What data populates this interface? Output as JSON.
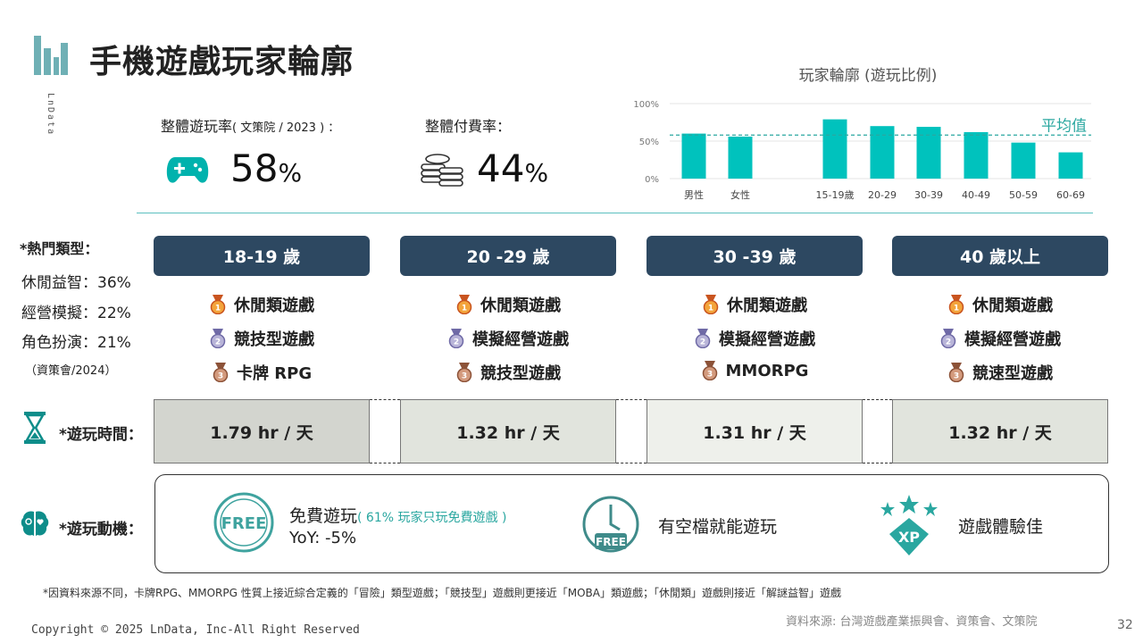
{
  "header": {
    "title": "手機遊戲玩家輪廓",
    "brand_vertical": "LnData"
  },
  "stats": {
    "play_rate_label": "整體遊玩率",
    "play_rate_source": "( 文策院 / 2023 ) ：",
    "play_rate_value": "58",
    "pay_rate_label": "整體付費率：",
    "pay_rate_value": "44",
    "pct": "%"
  },
  "chart_data": {
    "type": "bar",
    "title": "玩家輪廓 (遊玩比例)",
    "categories": [
      "男性",
      "女性",
      "15-19歲",
      "20-29",
      "30-39",
      "40-49",
      "50-59",
      "60-69"
    ],
    "values": [
      60,
      56,
      79,
      70,
      69,
      62,
      48,
      35
    ],
    "average": 58,
    "average_label": "平均值",
    "ylim": [
      0,
      100
    ],
    "yticks": [
      "100%",
      "50%",
      "0%"
    ],
    "color": "#00c2bd"
  },
  "categories": {
    "heading": "*熱門類型：",
    "items": [
      "休閒益智：36%",
      "經營模擬：22%",
      "角色扮演：21%"
    ],
    "source": "（資策會/2024）"
  },
  "age_groups": [
    {
      "label": "18-19 歲",
      "ranks": [
        "休閒類遊戲",
        "競技型遊戲",
        "卡牌 RPG"
      ],
      "time": "1.79 hr / 天"
    },
    {
      "label": "20 -29 歲",
      "ranks": [
        "休閒類遊戲",
        "模擬經營遊戲",
        "競技型遊戲"
      ],
      "time": "1.32 hr / 天"
    },
    {
      "label": "30 -39 歲",
      "ranks": [
        "休閒類遊戲",
        "模擬經營遊戲",
        "MMORPG"
      ],
      "time": "1.31 hr / 天"
    },
    {
      "label": "40 歲以上",
      "ranks": [
        "休閒類遊戲",
        "模擬經營遊戲",
        "競速型遊戲"
      ],
      "time": "1.32 hr / 天"
    }
  ],
  "play_time": {
    "label": "*遊玩時間："
  },
  "motivation": {
    "label": "*遊玩動機：",
    "free_title": "免費遊玩",
    "free_note": "( 61% 玩家只玩免費遊戲 )",
    "free_yoy": "YoY: -5%",
    "free_badge": "FREE",
    "spare_time": "有空檔就能遊玩",
    "experience": "遊戲體驗佳",
    "xp_badge": "XP"
  },
  "footer": {
    "footnote": "*因資料來源不同，卡牌RPG、MMORPG 性質上接近綜合定義的「冒險」類型遊戲；「競技型」遊戲則更接近「MOBA」類遊戲；「休閒類」遊戲則接近「解謎益智」遊戲",
    "copyright": "Copyright © 2025 LnData, Inc-All Right Reserved",
    "source": "資料來源: 台灣遊戲產業振興會、資策會、文策院",
    "page": "32"
  },
  "colors": {
    "navy": "#2d4861",
    "teal": "#5bbfbf",
    "bar": "#00c2bd"
  }
}
